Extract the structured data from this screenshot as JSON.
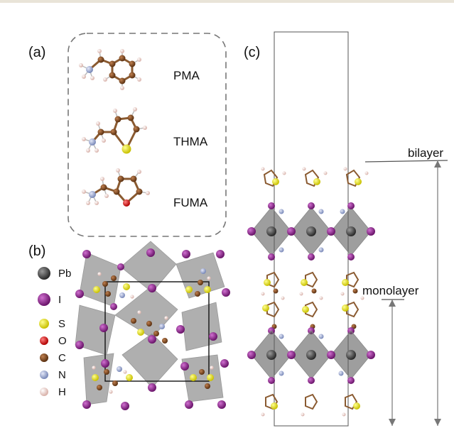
{
  "panels": {
    "a": "(a)",
    "b": "(b)",
    "c": "(c)"
  },
  "molecules": [
    "PMA",
    "THMA",
    "FUMA"
  ],
  "legend": [
    {
      "symbol": "Pb",
      "color": "#4a4a4a"
    },
    {
      "symbol": "I",
      "color": "#8e2a8e"
    },
    {
      "symbol": "S",
      "color": "#e8e40e"
    },
    {
      "symbol": "O",
      "color": "#e01818"
    },
    {
      "symbol": "C",
      "color": "#7a4a22"
    },
    {
      "symbol": "N",
      "color": "#a8b4d8"
    },
    {
      "symbol": "H",
      "color": "#f2d4d0"
    }
  ],
  "annotations": {
    "bilayer": "bilayer",
    "monolayer": "monolayer"
  }
}
